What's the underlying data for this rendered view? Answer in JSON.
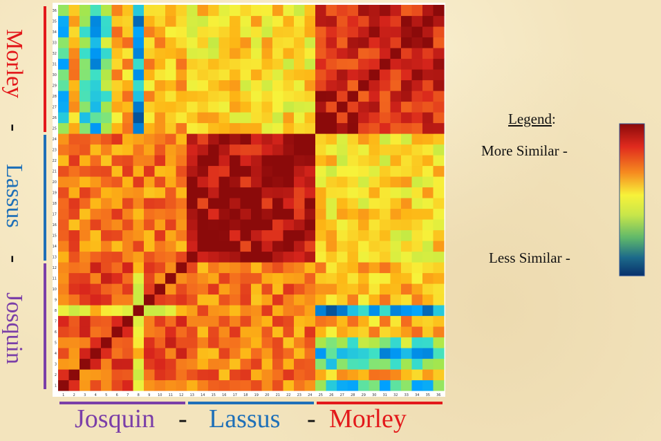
{
  "chart_data": {
    "type": "heatmap",
    "x_ticks": [
      "1",
      "2",
      "3",
      "4",
      "5",
      "6",
      "7",
      "8",
      "9",
      "10",
      "11",
      "12",
      "13",
      "14",
      "15",
      "16",
      "17",
      "18",
      "19",
      "20",
      "21",
      "22",
      "23",
      "24",
      "25",
      "26",
      "27",
      "28",
      "29",
      "30",
      "31",
      "32",
      "33",
      "34",
      "35",
      "36"
    ],
    "y_ticks": [
      "1",
      "2",
      "3",
      "4",
      "5",
      "6",
      "7",
      "8",
      "9",
      "10",
      "11",
      "12",
      "13",
      "14",
      "15",
      "16",
      "17",
      "18",
      "19",
      "20",
      "21",
      "22",
      "23",
      "24",
      "25",
      "26",
      "27",
      "28",
      "29",
      "30",
      "31",
      "32",
      "33",
      "34",
      "35",
      "36"
    ],
    "groups": [
      {
        "name": "Josquin",
        "start": 1,
        "end": 12,
        "color": "#7b3fa8"
      },
      {
        "name": "Lassus",
        "start": 13,
        "end": 24,
        "color": "#1f70b8"
      },
      {
        "name": "Morley",
        "start": 25,
        "end": 36,
        "color": "#e3191b"
      }
    ],
    "separator": "-",
    "colorscale": [
      "#08306b",
      "#00a0ff",
      "#3ce0c8",
      "#a8e64a",
      "#f7f23a",
      "#fdb515",
      "#f46a1e",
      "#d9261c",
      "#8b0a0a"
    ],
    "value_range": [
      0,
      1
    ],
    "description_note": ""
  },
  "legend": {
    "title": "Legend",
    "title_suffix": ":",
    "high_label": "More Similar  -",
    "low_label": "Less Similar  -"
  }
}
